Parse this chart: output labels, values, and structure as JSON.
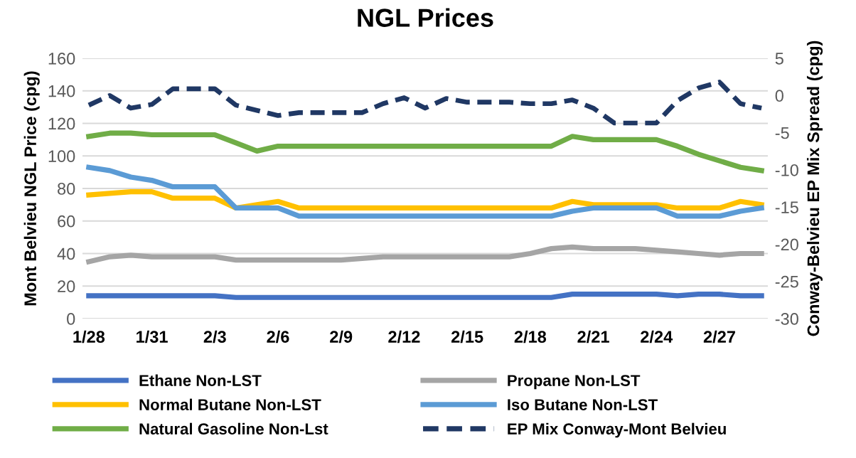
{
  "chart_data": {
    "type": "line",
    "title": "NGL Prices",
    "ylabel": "Mont Belvieu NGL Price (cpg)",
    "y2label": "Conway-Belvieu EP Mix Spread (cpg)",
    "categories": [
      "1/28",
      null,
      null,
      "1/31",
      null,
      null,
      "2/3",
      null,
      null,
      "2/6",
      null,
      null,
      "2/9",
      null,
      null,
      "2/12",
      null,
      null,
      "2/15",
      null,
      null,
      "2/18",
      null,
      null,
      "2/21",
      null,
      null,
      "2/24",
      null,
      null,
      "2/27",
      null,
      null
    ],
    "ylim": [
      0,
      160
    ],
    "yticks": [
      0,
      20,
      40,
      60,
      80,
      100,
      120,
      140,
      160
    ],
    "y2lim": [
      -30,
      5
    ],
    "y2ticks": [
      -30,
      -25,
      -20,
      -15,
      -10,
      -5,
      0,
      5
    ],
    "grid": "y",
    "legend": "bottom",
    "marker": "none",
    "series": [
      {
        "name": "Ethane Non-LST",
        "color": "#4472c4",
        "line_style": "solid",
        "values": [
          14,
          14,
          14,
          14,
          14,
          14,
          14,
          13,
          13,
          13,
          13,
          13,
          13,
          13,
          13,
          13,
          13,
          13,
          13,
          13,
          13,
          13,
          13,
          15,
          15,
          15,
          15,
          15,
          14,
          15,
          15,
          14,
          14
        ]
      },
      {
        "name": "Propane Non-LST",
        "color": "#a5a5a5",
        "line_style": "solid",
        "values": [
          35,
          38,
          39,
          38,
          38,
          38,
          38,
          36,
          36,
          36,
          36,
          36,
          36,
          37,
          38,
          38,
          38,
          38,
          38,
          38,
          38,
          40,
          43,
          44,
          43,
          43,
          43,
          42,
          41,
          40,
          39,
          40,
          40
        ]
      },
      {
        "name": "Normal Butane Non-LST",
        "color": "#ffc000",
        "line_style": "solid",
        "values": [
          76,
          77,
          78,
          78,
          74,
          74,
          74,
          68,
          70,
          72,
          68,
          68,
          68,
          68,
          68,
          68,
          68,
          68,
          68,
          68,
          68,
          68,
          68,
          72,
          70,
          70,
          70,
          70,
          68,
          68,
          68,
          72,
          70
        ]
      },
      {
        "name": "Iso Butane Non-LST",
        "color": "#5b9bd5",
        "line_style": "solid",
        "values": [
          93,
          91,
          87,
          85,
          81,
          81,
          81,
          68,
          68,
          68,
          63,
          63,
          63,
          63,
          63,
          63,
          63,
          63,
          63,
          63,
          63,
          63,
          63,
          66,
          68,
          68,
          68,
          68,
          63,
          63,
          63,
          66,
          68
        ]
      },
      {
        "name": "Natural Gasoline Non-Lst",
        "color": "#70ad47",
        "line_style": "solid",
        "values": [
          112,
          114,
          114,
          113,
          113,
          113,
          113,
          108,
          103,
          106,
          106,
          106,
          106,
          106,
          106,
          106,
          106,
          106,
          106,
          106,
          106,
          106,
          106,
          112,
          110,
          110,
          110,
          110,
          106,
          101,
          97,
          93,
          91
        ]
      },
      {
        "name": "EP Mix Conway-Mont Belvieu",
        "color": "#203864",
        "line_style": "dashed",
        "axis": "y2",
        "values": [
          -1.3,
          0,
          -1.7,
          -1.2,
          0.9,
          0.9,
          0.9,
          -1.3,
          -2.0,
          -2.7,
          -2.3,
          -2.3,
          -2.3,
          -2.3,
          -1.1,
          -0.3,
          -1.7,
          -0.4,
          -0.9,
          -0.9,
          -0.9,
          -1.1,
          -1.1,
          -0.6,
          -1.7,
          -3.7,
          -3.7,
          -3.7,
          -0.7,
          1.0,
          1.8,
          -1.1,
          -1.7
        ]
      }
    ]
  }
}
